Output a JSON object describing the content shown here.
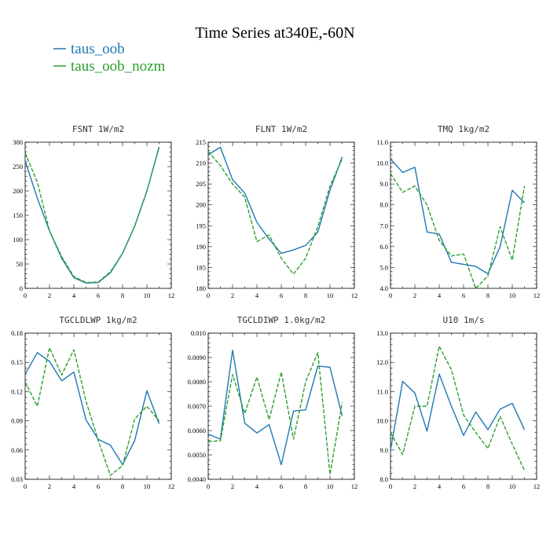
{
  "figure": {
    "title": "Time Series at340E,-60N"
  },
  "legend": [
    {
      "name": "taus_oob",
      "color": "#1f77b4"
    },
    {
      "name": "taus_oob_nozm",
      "color": "#2ca02c"
    }
  ],
  "chart_data": [
    {
      "type": "line",
      "title": "FSNT  1W/m2",
      "xlim": [
        0,
        12
      ],
      "ylim": [
        0,
        300
      ],
      "xticks": [
        "0",
        "2",
        "4",
        "6",
        "8",
        "10",
        "12"
      ],
      "yticks": [
        "0",
        "50",
        "100",
        "150",
        "200",
        "250",
        "300"
      ],
      "x": [
        0,
        1,
        2,
        3,
        4,
        5,
        6,
        7,
        8,
        9,
        10,
        11
      ],
      "series": [
        {
          "name": "taus_oob",
          "color": "#1f77b4",
          "dash": "",
          "values": [
            262,
            185,
            118,
            62,
            22,
            11,
            12,
            32,
            72,
            128,
            200,
            290
          ]
        },
        {
          "name": "taus_oob_nozm",
          "color": "#2ca02c",
          "dash": "5,2",
          "values": [
            278,
            218,
            118,
            65,
            24,
            12,
            13,
            34,
            72,
            128,
            200,
            290
          ]
        }
      ]
    },
    {
      "type": "line",
      "title": "FLNT  1W/m2",
      "xlim": [
        0,
        12
      ],
      "ylim": [
        180,
        215
      ],
      "xticks": [
        "0",
        "2",
        "4",
        "6",
        "8",
        "10",
        "12"
      ],
      "yticks": [
        "180",
        "185",
        "190",
        "195",
        "200",
        "205",
        "210",
        "215"
      ],
      "x": [
        0,
        1,
        2,
        3,
        4,
        5,
        6,
        7,
        8,
        9,
        10,
        11
      ],
      "series": [
        {
          "name": "taus_oob",
          "color": "#1f77b4",
          "dash": "",
          "values": [
            212,
            213.8,
            206,
            202.8,
            195.8,
            191.8,
            188.4,
            189.2,
            190.3,
            193.5,
            203.5,
            211.5
          ]
        },
        {
          "name": "taus_oob_nozm",
          "color": "#2ca02c",
          "dash": "5,2",
          "values": [
            212.8,
            209.4,
            205,
            201.8,
            191.2,
            192.8,
            187.2,
            183.4,
            187.2,
            194.8,
            204.5,
            211
          ]
        }
      ]
    },
    {
      "type": "line",
      "title": "TMQ  1kg/m2",
      "xlim": [
        0,
        12
      ],
      "ylim": [
        4.0,
        11.0
      ],
      "xticks": [
        "0",
        "2",
        "4",
        "6",
        "8",
        "10",
        "12"
      ],
      "yticks": [
        "4.0",
        "5.0",
        "6.0",
        "7.0",
        "8.0",
        "9.0",
        "10.0",
        "11.0"
      ],
      "x": [
        0,
        1,
        2,
        3,
        4,
        5,
        6,
        7,
        8,
        9,
        10,
        11
      ],
      "series": [
        {
          "name": "taus_oob",
          "color": "#1f77b4",
          "dash": "",
          "values": [
            10.2,
            9.55,
            9.8,
            6.7,
            6.6,
            5.25,
            5.15,
            5.05,
            4.7,
            6.0,
            8.7,
            8.1
          ]
        },
        {
          "name": "taus_oob_nozm",
          "color": "#2ca02c",
          "dash": "5,2",
          "values": [
            9.5,
            8.6,
            8.9,
            8.0,
            6.3,
            5.55,
            5.65,
            4.0,
            4.6,
            6.95,
            5.35,
            8.9
          ]
        }
      ]
    },
    {
      "type": "line",
      "title": "TGCLDLWP  1kg/m2",
      "xlim": [
        0,
        12
      ],
      "ylim": [
        0.03,
        0.18
      ],
      "xticks": [
        "0",
        "2",
        "4",
        "6",
        "8",
        "10",
        "12"
      ],
      "yticks": [
        "0.03",
        "0.06",
        "0.09",
        "0.12",
        "0.15",
        "0.18"
      ],
      "x": [
        0,
        1,
        2,
        3,
        4,
        5,
        6,
        7,
        8,
        9,
        10,
        11
      ],
      "series": [
        {
          "name": "taus_oob",
          "color": "#1f77b4",
          "dash": "",
          "values": [
            0.138,
            0.16,
            0.151,
            0.131,
            0.14,
            0.091,
            0.071,
            0.065,
            0.045,
            0.07,
            0.121,
            0.087
          ]
        },
        {
          "name": "taus_oob_nozm",
          "color": "#2ca02c",
          "dash": "5,2",
          "values": [
            0.13,
            0.105,
            0.165,
            0.137,
            0.163,
            0.11,
            0.07,
            0.034,
            0.044,
            0.092,
            0.105,
            0.09
          ]
        }
      ]
    },
    {
      "type": "line",
      "title": "TGCLDIWP  1.0kg/m2",
      "xlim": [
        0,
        12
      ],
      "ylim": [
        0.004,
        0.01
      ],
      "xticks": [
        "0",
        "2",
        "4",
        "6",
        "8",
        "10",
        "12"
      ],
      "yticks": [
        "0.0040",
        "0.0050",
        "0.0060",
        "0.0070",
        "0.0080",
        "0.0090",
        "0.010"
      ],
      "x": [
        0,
        1,
        2,
        3,
        4,
        5,
        6,
        7,
        8,
        9,
        10,
        11
      ],
      "series": [
        {
          "name": "taus_oob",
          "color": "#1f77b4",
          "dash": "",
          "values": [
            0.00585,
            0.00565,
            0.0093,
            0.0063,
            0.0059,
            0.00625,
            0.0046,
            0.0068,
            0.00685,
            0.00865,
            0.0086,
            0.0066
          ]
        },
        {
          "name": "taus_oob_nozm",
          "color": "#2ca02c",
          "dash": "5,2",
          "values": [
            0.00555,
            0.00558,
            0.0083,
            0.0067,
            0.0082,
            0.00645,
            0.0084,
            0.00565,
            0.008,
            0.0092,
            0.0042,
            0.00715
          ]
        }
      ]
    },
    {
      "type": "line",
      "title": "U10  1m/s",
      "xlim": [
        0,
        12
      ],
      "ylim": [
        8.0,
        13.0
      ],
      "xticks": [
        "0",
        "2",
        "4",
        "6",
        "8",
        "10",
        "12"
      ],
      "yticks": [
        "8.0",
        "9.0",
        "10.0",
        "11.0",
        "12.0",
        "13.0"
      ],
      "x": [
        0,
        1,
        2,
        3,
        4,
        5,
        6,
        7,
        8,
        9,
        10,
        11
      ],
      "series": [
        {
          "name": "taus_oob",
          "color": "#1f77b4",
          "dash": "",
          "values": [
            9.0,
            11.35,
            10.95,
            9.65,
            11.6,
            10.5,
            9.5,
            10.3,
            9.7,
            10.4,
            10.6,
            9.7
          ]
        },
        {
          "name": "taus_oob_nozm",
          "color": "#2ca02c",
          "dash": "5,2",
          "values": [
            9.6,
            8.85,
            10.5,
            10.5,
            12.55,
            11.75,
            10.2,
            9.6,
            9.05,
            10.15,
            9.2,
            8.3
          ]
        }
      ]
    }
  ]
}
